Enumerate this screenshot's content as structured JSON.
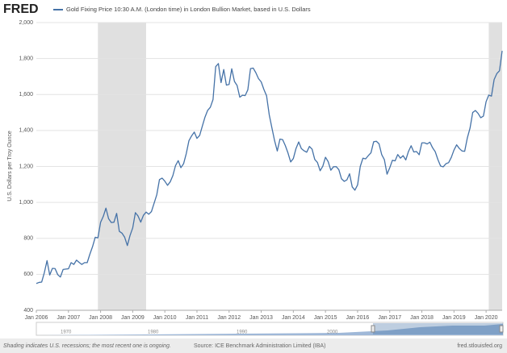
{
  "logo": "FRED",
  "chart_data": {
    "type": "line",
    "ylabel": "U.S. Dollars per Troy Ounce",
    "x": [
      "2006-01",
      "2006-02",
      "2006-03",
      "2006-04",
      "2006-05",
      "2006-06",
      "2006-07",
      "2006-08",
      "2006-09",
      "2006-10",
      "2006-11",
      "2006-12",
      "2007-01",
      "2007-02",
      "2007-03",
      "2007-04",
      "2007-05",
      "2007-06",
      "2007-07",
      "2007-08",
      "2007-09",
      "2007-10",
      "2007-11",
      "2007-12",
      "2008-01",
      "2008-02",
      "2008-03",
      "2008-04",
      "2008-05",
      "2008-06",
      "2008-07",
      "2008-08",
      "2008-09",
      "2008-10",
      "2008-11",
      "2008-12",
      "2009-01",
      "2009-02",
      "2009-03",
      "2009-04",
      "2009-05",
      "2009-06",
      "2009-07",
      "2009-08",
      "2009-09",
      "2009-10",
      "2009-11",
      "2009-12",
      "2010-01",
      "2010-02",
      "2010-03",
      "2010-04",
      "2010-05",
      "2010-06",
      "2010-07",
      "2010-08",
      "2010-09",
      "2010-10",
      "2010-11",
      "2010-12",
      "2011-01",
      "2011-02",
      "2011-03",
      "2011-04",
      "2011-05",
      "2011-06",
      "2011-07",
      "2011-08",
      "2011-09",
      "2011-10",
      "2011-11",
      "2011-12",
      "2012-01",
      "2012-02",
      "2012-03",
      "2012-04",
      "2012-05",
      "2012-06",
      "2012-07",
      "2012-08",
      "2012-09",
      "2012-10",
      "2012-11",
      "2012-12",
      "2013-01",
      "2013-02",
      "2013-03",
      "2013-04",
      "2013-05",
      "2013-06",
      "2013-07",
      "2013-08",
      "2013-09",
      "2013-10",
      "2013-11",
      "2013-12",
      "2014-01",
      "2014-02",
      "2014-03",
      "2014-04",
      "2014-05",
      "2014-06",
      "2014-07",
      "2014-08",
      "2014-09",
      "2014-10",
      "2014-11",
      "2014-12",
      "2015-01",
      "2015-02",
      "2015-03",
      "2015-04",
      "2015-05",
      "2015-06",
      "2015-07",
      "2015-08",
      "2015-09",
      "2015-10",
      "2015-11",
      "2015-12",
      "2016-01",
      "2016-02",
      "2016-03",
      "2016-04",
      "2016-05",
      "2016-06",
      "2016-07",
      "2016-08",
      "2016-09",
      "2016-10",
      "2016-11",
      "2016-12",
      "2017-01",
      "2017-02",
      "2017-03",
      "2017-04",
      "2017-05",
      "2017-06",
      "2017-07",
      "2017-08",
      "2017-09",
      "2017-10",
      "2017-11",
      "2017-12",
      "2018-01",
      "2018-02",
      "2018-03",
      "2018-04",
      "2018-05",
      "2018-06",
      "2018-07",
      "2018-08",
      "2018-09",
      "2018-10",
      "2018-11",
      "2018-12",
      "2019-01",
      "2019-02",
      "2019-03",
      "2019-04",
      "2019-05",
      "2019-06",
      "2019-07",
      "2019-08",
      "2019-09",
      "2019-10",
      "2019-11",
      "2019-12",
      "2020-01",
      "2020-02",
      "2020-03",
      "2020-04",
      "2020-05",
      "2020-06",
      "2020-07"
    ],
    "series": [
      {
        "name": "Gold Fixing Price 10:30 A.M. (London time) in London Bullion Market, based in U.S. Dollars",
        "color": "#4572a7",
        "values": [
          549,
          555,
          557,
          610,
          676,
          596,
          633,
          632,
          598,
          585,
          627,
          629,
          631,
          665,
          655,
          679,
          666,
          655,
          665,
          665,
          712,
          754,
          806,
          803,
          889,
          922,
          968,
          909,
          888,
          890,
          939,
          839,
          829,
          806,
          760,
          816,
          858,
          943,
          924,
          890,
          928,
          946,
          934,
          949,
          996,
          1043,
          1127,
          1135,
          1118,
          1095,
          1114,
          1149,
          1205,
          1232,
          1193,
          1215,
          1271,
          1343,
          1370,
          1391,
          1356,
          1372,
          1424,
          1474,
          1512,
          1529,
          1572,
          1755,
          1772,
          1666,
          1739,
          1652,
          1656,
          1743,
          1673,
          1650,
          1585,
          1596,
          1594,
          1626,
          1744,
          1747,
          1721,
          1688,
          1670,
          1628,
          1593,
          1487,
          1414,
          1343,
          1286,
          1352,
          1349,
          1316,
          1275,
          1225,
          1244,
          1300,
          1336,
          1299,
          1287,
          1279,
          1311,
          1296,
          1239,
          1222,
          1176,
          1201,
          1251,
          1227,
          1179,
          1198,
          1199,
          1182,
          1131,
          1117,
          1125,
          1159,
          1086,
          1068,
          1097,
          1200,
          1246,
          1242,
          1260,
          1276,
          1337,
          1340,
          1326,
          1266,
          1238,
          1157,
          1192,
          1234,
          1231,
          1266,
          1246,
          1260,
          1236,
          1283,
          1315,
          1280,
          1283,
          1265,
          1331,
          1331,
          1325,
          1335,
          1304,
          1282,
          1238,
          1202,
          1198,
          1215,
          1221,
          1250,
          1291,
          1320,
          1300,
          1286,
          1284,
          1359,
          1413,
          1500,
          1511,
          1495,
          1471,
          1480,
          1560,
          1597,
          1591,
          1683,
          1716,
          1732,
          1843
        ]
      }
    ],
    "xlim": [
      "2006-01",
      "2020-07"
    ],
    "xticks": [
      {
        "value": "2006-01",
        "label": "Jan 2006"
      },
      {
        "value": "2007-01",
        "label": "Jan 2007"
      },
      {
        "value": "2008-01",
        "label": "Jan 2008"
      },
      {
        "value": "2009-01",
        "label": "Jan 2009"
      },
      {
        "value": "2010-01",
        "label": "Jan 2010"
      },
      {
        "value": "2011-01",
        "label": "Jan 2011"
      },
      {
        "value": "2012-01",
        "label": "Jan 2012"
      },
      {
        "value": "2013-01",
        "label": "Jan 2013"
      },
      {
        "value": "2014-01",
        "label": "Jan 2014"
      },
      {
        "value": "2015-01",
        "label": "Jan 2015"
      },
      {
        "value": "2016-01",
        "label": "Jan 2016"
      },
      {
        "value": "2017-01",
        "label": "Jan 2017"
      },
      {
        "value": "2018-01",
        "label": "Jan 2018"
      },
      {
        "value": "2019-01",
        "label": "Jan 2019"
      },
      {
        "value": "2020-01",
        "label": "Jan 2020"
      }
    ],
    "ylim": [
      400,
      2000
    ],
    "yticks": [
      400,
      600,
      800,
      {
        "value": 1000,
        "label": "1,000"
      },
      {
        "value": 1200,
        "label": "1,200"
      },
      {
        "value": 1400,
        "label": "1,400"
      },
      {
        "value": 1600,
        "label": "1,600"
      },
      {
        "value": 1800,
        "label": "1,800"
      },
      {
        "value": 2000,
        "label": "2,000"
      }
    ],
    "grid": true,
    "recessions": [
      [
        "2007-12",
        "2009-06"
      ],
      [
        "2020-02",
        "2020-07"
      ]
    ]
  },
  "navigator_labels": [
    "1970",
    "1980",
    "1990",
    "2000"
  ],
  "footer": {
    "note": "Shading indicates U.S. recessions; the most recent one is ongoing.",
    "source": "Source: ICE Benchmark Administration Limited (IBA)",
    "site": "fred.stlouisfed.org"
  }
}
